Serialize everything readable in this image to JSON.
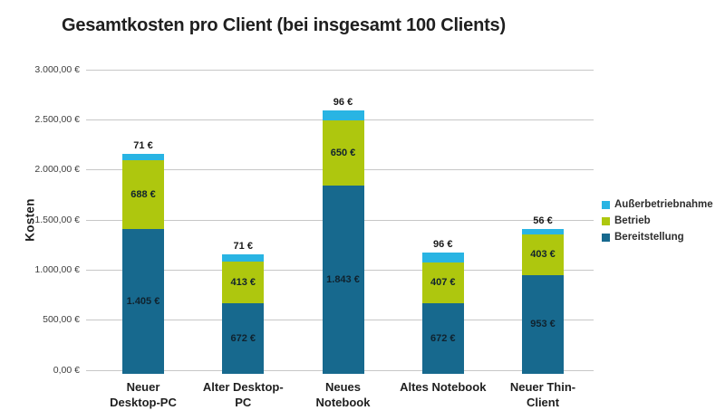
{
  "title": "Gesamtkosten pro Client (bei insgesamt 100 Clients)",
  "colors": {
    "bereitstellung": "#17698e",
    "betrieb": "#aec70e",
    "ausserbetriebnahme": "#29b4e3",
    "gridline": "#c7c7c7",
    "background": "#ffffff"
  },
  "chart_data": {
    "type": "bar",
    "stacked": true,
    "title": "Gesamtkosten pro Client (bei insgesamt 100 Clients)",
    "xlabel": "",
    "ylabel": "Kosten",
    "ylim": [
      0,
      3000
    ],
    "ytick_step": 500,
    "ytick_labels": [
      "0,00 €",
      "500,00 €",
      "1.000,00 €",
      "1.500,00 €",
      "2.000,00 €",
      "2.500,00 €",
      "3.000,00 €"
    ],
    "grid": true,
    "legend_position": "right",
    "categories": [
      "Neuer Desktop-PC",
      "Alter Desktop-PC",
      "Neues Notebook",
      "Altes Notebook",
      "Neuer Thin-Client"
    ],
    "series": [
      {
        "name": "Bereitstellung",
        "color": "#17698e",
        "values": [
          1405,
          672,
          1843,
          672,
          953
        ],
        "labels": [
          "1.405 €",
          "672 €",
          "1.843 €",
          "672 €",
          "953 €"
        ],
        "label_position": "inside"
      },
      {
        "name": "Betrieb",
        "color": "#aec70e",
        "values": [
          688,
          413,
          650,
          407,
          403
        ],
        "labels": [
          "688 €",
          "413 €",
          "650 €",
          "407 €",
          "403 €"
        ],
        "label_position": "inside"
      },
      {
        "name": "Außerbetriebnahme",
        "color": "#29b4e3",
        "values": [
          71,
          71,
          96,
          96,
          56
        ],
        "labels": [
          "71 €",
          "71 €",
          "96 €",
          "96 €",
          "56 €"
        ],
        "label_position": "above"
      }
    ],
    "legend": [
      {
        "label": "Außerbetriebnahme",
        "color": "#29b4e3"
      },
      {
        "label": "Betrieb",
        "color": "#aec70e"
      },
      {
        "label": "Bereitstellung",
        "color": "#17698e"
      }
    ],
    "totals": [
      2164,
      1156,
      2589,
      1175,
      1412
    ]
  }
}
